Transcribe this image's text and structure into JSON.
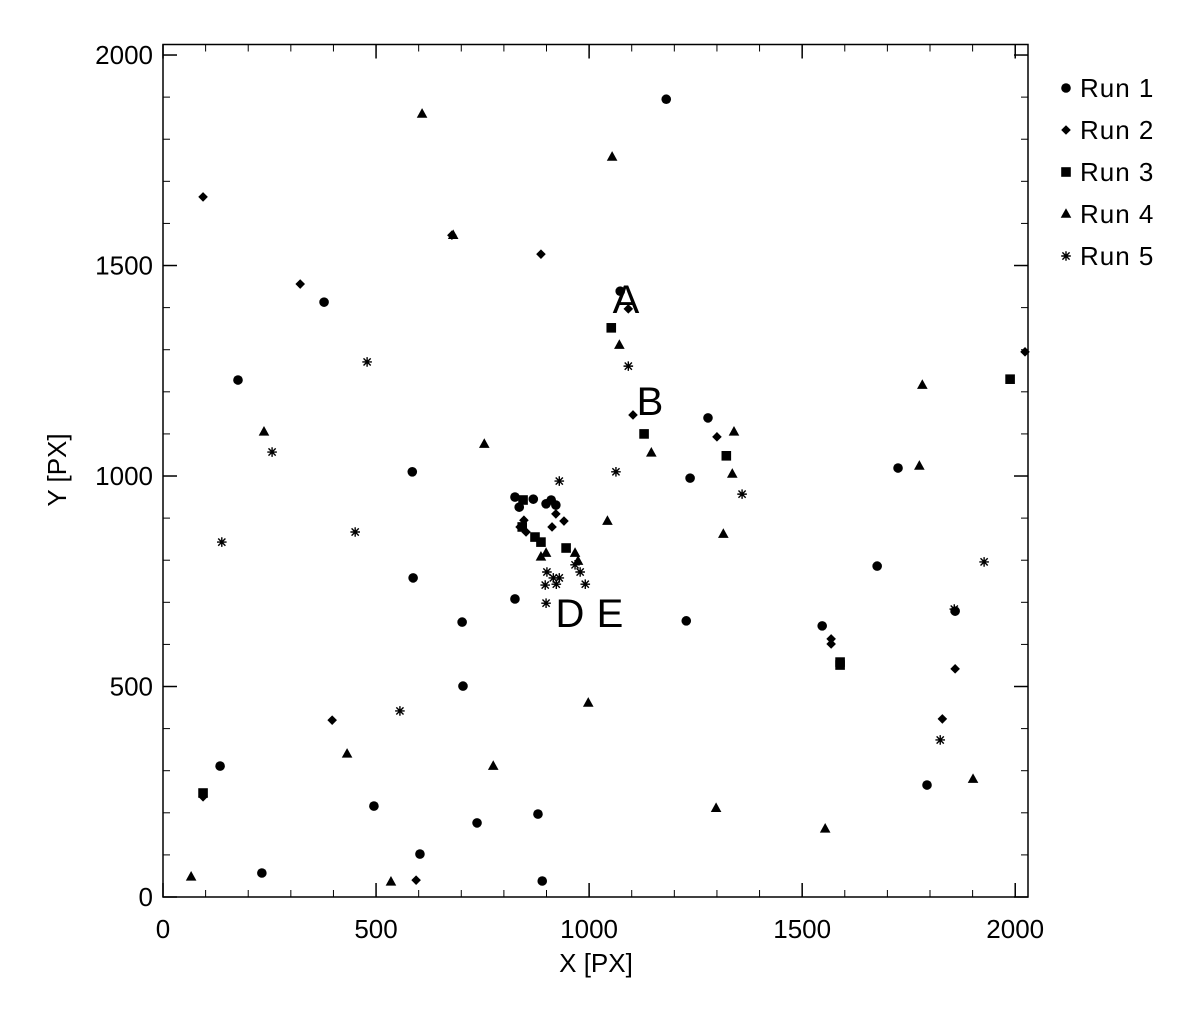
{
  "chart_data": {
    "type": "scatter",
    "x_label": "X [PX]",
    "y_label": "Y [PX]",
    "xlim": [
      0,
      2030
    ],
    "ylim": [
      0,
      2025
    ],
    "xticks": [
      0,
      500,
      1000,
      1500,
      2000
    ],
    "yticks": [
      0,
      500,
      1000,
      1500,
      2000
    ],
    "legend": "outside-right",
    "annotations": [
      "A",
      "B",
      "D",
      "E"
    ],
    "series": [
      {
        "name": "Run 1",
        "marker": "circle",
        "color": "#000000",
        "x": [
          1181,
          1073,
          378,
          176,
          585,
          587,
          702,
          826,
          704,
          134,
          495,
          737,
          880,
          603,
          232,
          890,
          1279,
          1237,
          1228,
          1725,
          1676,
          1547,
          1793,
          1859,
          826,
          869,
          911,
          922,
          899,
          836
        ],
        "values": [
          1895,
          1439,
          1413,
          1228,
          1010,
          758,
          653,
          708,
          501,
          311,
          216,
          176,
          197,
          102,
          57,
          38,
          1138,
          995,
          656,
          1019,
          786,
          644,
          266,
          679,
          950,
          945,
          943,
          931,
          934,
          926
        ]
      },
      {
        "name": "Run 2",
        "marker": "diamond",
        "color": "#000000",
        "x": [
          94,
          322,
          887,
          678,
          1092,
          1103,
          1300,
          941,
          922,
          913,
          847,
          838,
          852,
          397,
          94,
          594,
          1568,
          1568,
          1859,
          1829,
          2023
        ],
        "values": [
          1663,
          1456,
          1527,
          1572,
          1397,
          1145,
          1093,
          893,
          910,
          879,
          895,
          879,
          867,
          420,
          238,
          40,
          613,
          601,
          542,
          423,
          1295
        ]
      },
      {
        "name": "Run 3",
        "marker": "square",
        "color": "#000000",
        "x": [
          1052,
          1129,
          1322,
          1988,
          1589,
          1589,
          94,
          843,
          873,
          887,
          946,
          845
        ],
        "values": [
          1352,
          1100,
          1048,
          1230,
          558,
          551,
          247,
          879,
          855,
          843,
          829,
          943
        ]
      },
      {
        "name": "Run 4",
        "marker": "triangle",
        "color": "#000000",
        "x": [
          608,
          1054,
          681,
          1071,
          237,
          754,
          1146,
          1340,
          1336,
          1782,
          1775,
          1315,
          1043,
          899,
          887,
          967,
          974,
          998,
          432,
          775,
          1298,
          1554,
          1901,
          66,
          535
        ],
        "values": [
          1860,
          1758,
          1572,
          1311,
          1105,
          1076,
          1055,
          1105,
          1005,
          1216,
          1024,
          862,
          893,
          817,
          808,
          817,
          798,
          461,
          340,
          311,
          211,
          162,
          280,
          48,
          36
        ]
      },
      {
        "name": "Run 5",
        "marker": "asterisk",
        "color": "#000000",
        "x": [
          479,
          1092,
          256,
          1063,
          1359,
          138,
          451,
          930,
          1927,
          967,
          979,
          901,
          916,
          930,
          897,
          923,
          991,
          899,
          1857,
          556,
          1824
        ],
        "values": [
          1271,
          1261,
          1057,
          1010,
          957,
          843,
          867,
          988,
          796,
          789,
          772,
          772,
          758,
          758,
          741,
          743,
          743,
          698,
          684,
          442,
          373
        ]
      }
    ]
  }
}
